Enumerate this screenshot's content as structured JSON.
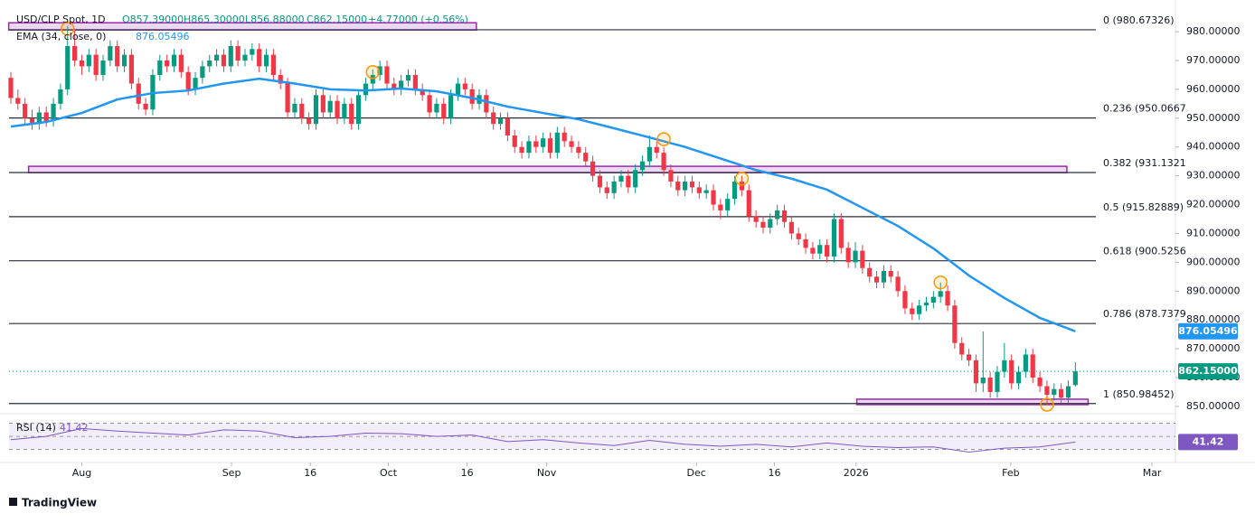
{
  "chart_data": {
    "type": "candlestick",
    "legend": {
      "symbol": "USD/CLP Spot, 1D",
      "open": "O857.39000",
      "high": "H865.30000",
      "low": "L856.88000",
      "close": "C862.15000",
      "change": "+4.77000 (+0.56%)"
    },
    "colors": {
      "up": "#089981",
      "down": "#f23645",
      "ema": "#2196f3",
      "rsi": "#7e57c2",
      "zone": "#9c27b0",
      "highlight": "#ff9800",
      "fib": "#2a2e39"
    },
    "ylim": [
      848.4,
      991
    ],
    "xlim": [
      -0.25,
      164.1
    ],
    "grid": false,
    "yticks": [
      {
        "value": 850,
        "label": "850.00000"
      },
      {
        "value": 860,
        "label": "860.00000"
      },
      {
        "value": 870,
        "label": "870.00000"
      },
      {
        "value": 880,
        "label": "880.00000"
      },
      {
        "value": 890,
        "label": "890.00000"
      },
      {
        "value": 900,
        "label": "900.00000"
      },
      {
        "value": 910,
        "label": "910.00000"
      },
      {
        "value": 920,
        "label": "920.00000"
      },
      {
        "value": 930,
        "label": "930.00000"
      },
      {
        "value": 940,
        "label": "940.00000"
      },
      {
        "value": 950,
        "label": "950.00000"
      },
      {
        "value": 960,
        "label": "960.00000"
      },
      {
        "value": 970,
        "label": "970.00000"
      },
      {
        "value": 980,
        "label": "980.00000"
      }
    ],
    "xticks": [
      {
        "value": 10,
        "label": "Aug"
      },
      {
        "value": 31.1,
        "label": "Sep"
      },
      {
        "value": 42.2,
        "label": "16"
      },
      {
        "value": 53.2,
        "label": "Oct"
      },
      {
        "value": 64.3,
        "label": "16"
      },
      {
        "value": 75.5,
        "label": "Nov"
      },
      {
        "value": 96.6,
        "label": "Dec"
      },
      {
        "value": 107.6,
        "label": "16"
      },
      {
        "value": 119.1,
        "label": "2026"
      },
      {
        "value": 140.9,
        "label": "Feb"
      },
      {
        "value": 160.8,
        "label": "Mar"
      }
    ],
    "ohlc": [
      [
        964,
        966,
        955,
        957
      ],
      [
        957,
        960,
        953,
        955
      ],
      [
        955,
        957,
        948,
        950
      ],
      [
        950,
        953,
        946,
        948
      ],
      [
        948,
        954,
        946,
        952
      ],
      [
        952,
        954,
        947,
        949
      ],
      [
        949,
        957,
        947,
        955
      ],
      [
        955,
        962,
        953,
        960
      ],
      [
        960,
        982,
        958,
        975
      ],
      [
        975,
        981,
        968,
        970
      ],
      [
        970,
        972,
        965,
        968
      ],
      [
        968,
        974,
        966,
        972
      ],
      [
        972,
        974,
        963,
        965
      ],
      [
        965,
        972,
        963,
        970
      ],
      [
        970,
        977,
        968,
        975
      ],
      [
        975,
        977,
        966,
        968
      ],
      [
        968,
        974,
        966,
        972
      ],
      [
        972,
        974,
        960,
        962
      ],
      [
        962,
        964,
        953,
        955
      ],
      [
        955,
        957,
        951,
        953
      ],
      [
        953,
        967,
        951,
        965
      ],
      [
        965,
        972,
        963,
        970
      ],
      [
        970,
        972,
        966,
        968
      ],
      [
        968,
        974,
        966,
        972
      ],
      [
        972,
        974,
        964,
        966
      ],
      [
        966,
        968,
        958,
        960
      ],
      [
        960,
        966,
        958,
        964
      ],
      [
        964,
        970,
        962,
        968
      ],
      [
        968,
        972,
        966,
        970
      ],
      [
        970,
        974,
        968,
        972
      ],
      [
        972,
        974,
        966,
        968
      ],
      [
        968,
        977,
        966,
        975
      ],
      [
        975,
        977,
        968,
        970
      ],
      [
        970,
        974,
        968,
        972
      ],
      [
        972,
        976,
        970,
        974
      ],
      [
        974,
        976,
        966,
        968
      ],
      [
        968,
        974,
        966,
        972
      ],
      [
        972,
        974,
        963,
        965
      ],
      [
        965,
        967,
        960,
        962
      ],
      [
        962,
        964,
        950,
        952
      ],
      [
        952,
        957,
        950,
        955
      ],
      [
        955,
        957,
        948,
        950
      ],
      [
        950,
        952,
        946,
        948
      ],
      [
        948,
        960,
        946,
        958
      ],
      [
        958,
        960,
        950,
        952
      ],
      [
        952,
        958,
        950,
        956
      ],
      [
        956,
        958,
        948,
        950
      ],
      [
        950,
        957,
        948,
        955
      ],
      [
        955,
        957,
        946,
        948
      ],
      [
        948,
        960,
        946,
        958
      ],
      [
        958,
        964,
        956,
        962
      ],
      [
        962,
        967,
        960,
        965
      ],
      [
        965,
        970,
        963,
        968
      ],
      [
        968,
        970,
        960,
        962
      ],
      [
        962,
        964,
        958,
        960
      ],
      [
        960,
        965,
        958,
        963
      ],
      [
        963,
        967,
        961,
        965
      ],
      [
        965,
        967,
        958,
        960
      ],
      [
        960,
        962,
        956,
        958
      ],
      [
        958,
        960,
        950,
        952
      ],
      [
        952,
        957,
        950,
        955
      ],
      [
        955,
        957,
        948,
        950
      ],
      [
        950,
        960,
        948,
        958
      ],
      [
        958,
        964,
        956,
        962
      ],
      [
        962,
        964,
        958,
        960
      ],
      [
        960,
        962,
        953,
        955
      ],
      [
        955,
        960,
        953,
        958
      ],
      [
        958,
        960,
        950,
        952
      ],
      [
        952,
        954,
        946,
        948
      ],
      [
        948,
        952,
        946,
        950
      ],
      [
        950,
        952,
        942,
        944
      ],
      [
        944,
        946,
        938,
        940
      ],
      [
        940,
        942,
        936,
        938
      ],
      [
        938,
        944,
        936,
        942
      ],
      [
        942,
        944,
        938,
        940
      ],
      [
        940,
        945,
        938,
        943
      ],
      [
        943,
        945,
        936,
        938
      ],
      [
        938,
        947,
        936,
        945
      ],
      [
        945,
        947,
        940,
        942
      ],
      [
        942,
        944,
        938,
        940
      ],
      [
        940,
        942,
        936,
        938
      ],
      [
        938,
        940,
        933,
        935
      ],
      [
        935,
        937,
        928,
        930
      ],
      [
        930,
        932,
        924,
        926
      ],
      [
        926,
        928,
        922,
        924
      ],
      [
        924,
        930,
        922,
        928
      ],
      [
        928,
        932,
        926,
        930
      ],
      [
        930,
        932,
        924,
        926
      ],
      [
        926,
        934,
        924,
        932
      ],
      [
        932,
        937,
        930,
        935
      ],
      [
        935,
        944,
        933,
        940
      ],
      [
        940,
        942,
        936,
        938
      ],
      [
        938,
        940,
        930,
        932
      ],
      [
        932,
        934,
        926,
        928
      ],
      [
        928,
        930,
        923,
        925
      ],
      [
        925,
        930,
        923,
        928
      ],
      [
        928,
        930,
        924,
        926
      ],
      [
        926,
        928,
        922,
        924
      ],
      [
        924,
        927,
        922,
        925
      ],
      [
        925,
        927,
        918,
        920
      ],
      [
        920,
        922,
        915,
        918
      ],
      [
        918,
        924,
        916,
        922
      ],
      [
        922,
        930,
        920,
        928
      ],
      [
        928,
        930,
        923,
        925
      ],
      [
        925,
        927,
        914,
        916
      ],
      [
        916,
        918,
        912,
        914
      ],
      [
        914,
        916,
        910,
        912
      ],
      [
        912,
        917,
        910,
        915
      ],
      [
        915,
        920,
        913,
        918
      ],
      [
        918,
        920,
        912,
        914
      ],
      [
        914,
        916,
        908,
        910
      ],
      [
        910,
        912,
        906,
        908
      ],
      [
        908,
        910,
        903,
        905
      ],
      [
        905,
        907,
        901,
        903
      ],
      [
        903,
        908,
        901,
        906
      ],
      [
        906,
        908,
        900,
        902
      ],
      [
        902,
        917,
        900,
        915
      ],
      [
        915,
        917,
        903,
        905
      ],
      [
        905,
        907,
        898,
        900
      ],
      [
        900,
        907,
        898,
        904
      ],
      [
        904,
        906,
        896,
        898
      ],
      [
        898,
        900,
        893,
        895
      ],
      [
        895,
        897,
        891,
        893
      ],
      [
        893,
        899,
        891,
        897
      ],
      [
        897,
        899,
        893,
        895
      ],
      [
        895,
        897,
        888,
        890
      ],
      [
        890,
        892,
        882,
        884
      ],
      [
        884,
        886,
        880,
        882
      ],
      [
        882,
        887,
        880,
        885
      ],
      [
        885,
        888,
        883,
        886
      ],
      [
        886,
        890,
        884,
        888
      ],
      [
        888,
        893,
        886,
        890
      ],
      [
        890,
        892,
        883,
        885
      ],
      [
        885,
        887,
        870,
        872
      ],
      [
        872,
        874,
        866,
        868
      ],
      [
        868,
        870,
        864,
        866
      ],
      [
        866,
        868,
        855,
        858
      ],
      [
        858,
        876,
        855,
        860
      ],
      [
        860,
        862,
        853,
        855
      ],
      [
        855,
        864,
        853,
        862
      ],
      [
        862,
        872,
        860,
        866
      ],
      [
        866,
        868,
        856,
        858
      ],
      [
        858,
        864,
        856,
        862
      ],
      [
        862,
        870,
        860,
        868
      ],
      [
        868,
        870,
        858,
        860
      ],
      [
        860,
        862,
        855,
        857
      ],
      [
        857,
        859,
        851,
        854
      ],
      [
        854,
        858,
        852,
        856
      ],
      [
        856,
        858,
        851,
        853
      ],
      [
        853,
        859,
        851,
        857
      ],
      [
        857.39,
        865.3,
        856.88,
        862.15
      ]
    ],
    "price_label": "862.15000",
    "ema": {
      "name": "EMA (34, close, 0)",
      "last_label": "876.05496",
      "x": [
        0,
        5,
        10,
        15,
        20,
        25,
        30,
        35,
        40,
        45,
        50,
        55,
        60,
        65,
        70,
        75,
        80,
        85,
        90,
        95,
        100,
        105,
        110,
        115,
        120,
        125,
        130,
        135,
        140,
        145,
        150
      ],
      "values": [
        947.1,
        948.7,
        951.8,
        956.5,
        958.7,
        959.6,
        962,
        963.7,
        962,
        960,
        959.6,
        960.3,
        959.3,
        957,
        954,
        951.8,
        949.6,
        946.5,
        943.3,
        940,
        936,
        932,
        929,
        925.2,
        918.9,
        912.6,
        904.8,
        895.4,
        887.6,
        880.7,
        876.05496
      ]
    },
    "fib_levels": [
      {
        "value": 980.67326,
        "label": "0 (980.67326)"
      },
      {
        "value": 950.0667,
        "label": "0.236 (950.0667"
      },
      {
        "value": 931.1321,
        "label": "0.382 (931.1321"
      },
      {
        "value": 915.82889,
        "label": "0.5 (915.82889)"
      },
      {
        "value": 900.5256,
        "label": "0.618 (900.5256"
      },
      {
        "value": 878.7379,
        "label": "0.786 (878.7379"
      },
      {
        "value": 850.98452,
        "label": "1 (850.98452)"
      }
    ],
    "zones": [
      {
        "x": [
          -0.3,
          65.6
        ],
        "y": [
          980.6,
          983.1
        ]
      },
      {
        "x": [
          2.5,
          148.8
        ],
        "y": [
          931.1,
          933.3
        ]
      },
      {
        "x": [
          119.2,
          151.8
        ],
        "y": [
          850.6,
          852.5
        ]
      }
    ],
    "highlights": [
      {
        "x": 8,
        "y": 981
      },
      {
        "x": 51,
        "y": 966
      },
      {
        "x": 92,
        "y": 942.7
      },
      {
        "x": 103,
        "y": 929
      },
      {
        "x": 131,
        "y": 893
      },
      {
        "x": 146,
        "y": 850.6
      }
    ],
    "rsi": {
      "name": "RSI (14)",
      "last_label": "41.42",
      "ylim": [
        13,
        79
      ],
      "levels": [
        70,
        50,
        30
      ],
      "x": [
        0,
        5,
        10,
        15,
        20,
        25,
        30,
        35,
        40,
        45,
        50,
        55,
        60,
        65,
        70,
        75,
        80,
        85,
        90,
        95,
        100,
        105,
        110,
        115,
        120,
        125,
        130,
        135,
        140,
        145,
        150
      ],
      "values": [
        45,
        50,
        62,
        58,
        55,
        52,
        60,
        58,
        48,
        50,
        55,
        54,
        50,
        52,
        42,
        45,
        40,
        36,
        44,
        38,
        35,
        38,
        34,
        40,
        35,
        33,
        34,
        26,
        32,
        34,
        41.42
      ]
    },
    "brand": "TradingView"
  }
}
